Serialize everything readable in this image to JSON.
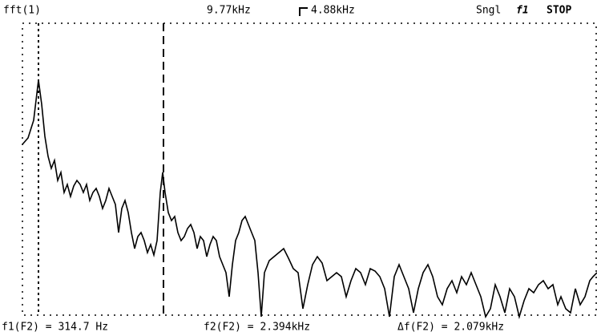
{
  "header": {
    "source": "fft(1)",
    "span": "9.77kHz",
    "center": "4.88kHz",
    "mode": "Sngl",
    "channel": "f1",
    "status": "STOP"
  },
  "footer": {
    "f1": "f1(F2) = 314.7 Hz",
    "f2": "f2(F2) = 2.394kHz",
    "delta": "Δf(F2) = 2.079kHz"
  }
}
